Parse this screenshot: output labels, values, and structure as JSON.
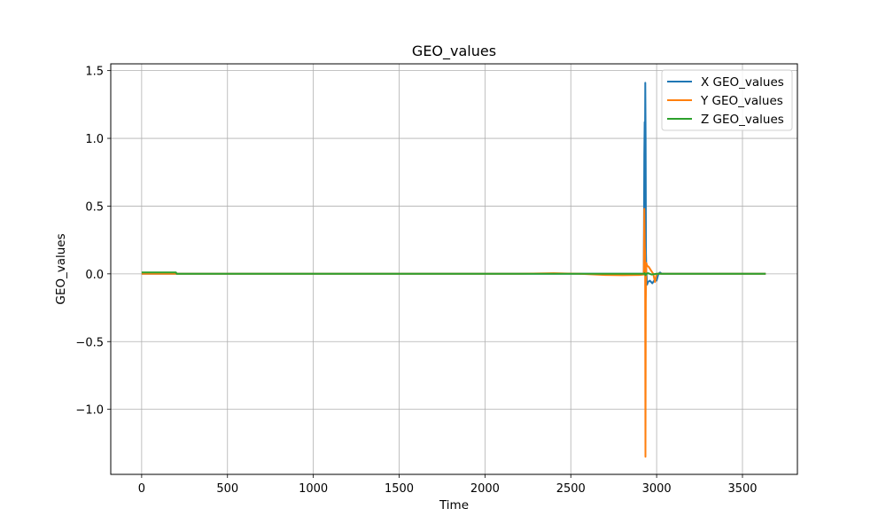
{
  "chart_data": {
    "type": "line",
    "title": "GEO_values",
    "xlabel": "Time",
    "ylabel": "GEO_values",
    "xlim": [
      -180,
      3820
    ],
    "ylim": [
      -1.48,
      1.55
    ],
    "xticks": [
      0,
      500,
      1000,
      1500,
      2000,
      2500,
      3000,
      3500
    ],
    "xtick_labels": [
      "0",
      "500",
      "1000",
      "1500",
      "2000",
      "2500",
      "3000",
      "3500"
    ],
    "yticks": [
      1.5,
      1.0,
      0.5,
      0.0,
      -0.5,
      -1.0
    ],
    "ytick_labels": [
      "1.5",
      "1.0",
      "0.5",
      "0.0",
      "−0.5",
      "−1.0"
    ],
    "grid": true,
    "legend_position": "top-right",
    "series": [
      {
        "name": "X GEO_values",
        "color": "#1f77b4",
        "x": [
          0,
          200,
          205,
          2925,
          2928,
          2930,
          2932,
          2934,
          2936,
          2938,
          2940,
          2942,
          2944,
          2950,
          2960,
          2975,
          2990,
          3000,
          3010,
          3020,
          3030,
          3635
        ],
        "y": [
          0.0,
          0.0,
          0.0,
          0.0,
          0.88,
          1.12,
          0.95,
          1.41,
          1.0,
          0.15,
          0.02,
          -0.02,
          -0.08,
          -0.06,
          -0.05,
          -0.07,
          -0.04,
          -0.05,
          0.0,
          0.01,
          0.0,
          0.0
        ]
      },
      {
        "name": "Y GEO_values",
        "color": "#ff7f0e",
        "x": [
          0,
          200,
          205,
          2200,
          2400,
          2550,
          2700,
          2800,
          2900,
          2925,
          2928,
          2931,
          2933,
          2935,
          2937,
          2940,
          2945,
          2955,
          2965,
          2980,
          2990,
          3000,
          3020,
          3635
        ],
        "y": [
          0.0,
          0.0,
          0.0,
          0.0,
          0.005,
          0.0,
          -0.008,
          -0.01,
          -0.008,
          -0.005,
          0.48,
          0.2,
          0.15,
          -1.35,
          -0.2,
          0.08,
          0.06,
          0.05,
          0.03,
          0.0,
          -0.06,
          0.0,
          0.0,
          0.0
        ]
      },
      {
        "name": "Z GEO_values",
        "color": "#2ca02c",
        "x": [
          0,
          200,
          205,
          2925,
          2930,
          2935,
          2940,
          2950,
          2970,
          3000,
          3635
        ],
        "y": [
          0.01,
          0.01,
          0.0,
          0.0,
          0.005,
          -0.01,
          0.0,
          0.005,
          -0.005,
          0.0,
          0.0
        ]
      }
    ]
  }
}
